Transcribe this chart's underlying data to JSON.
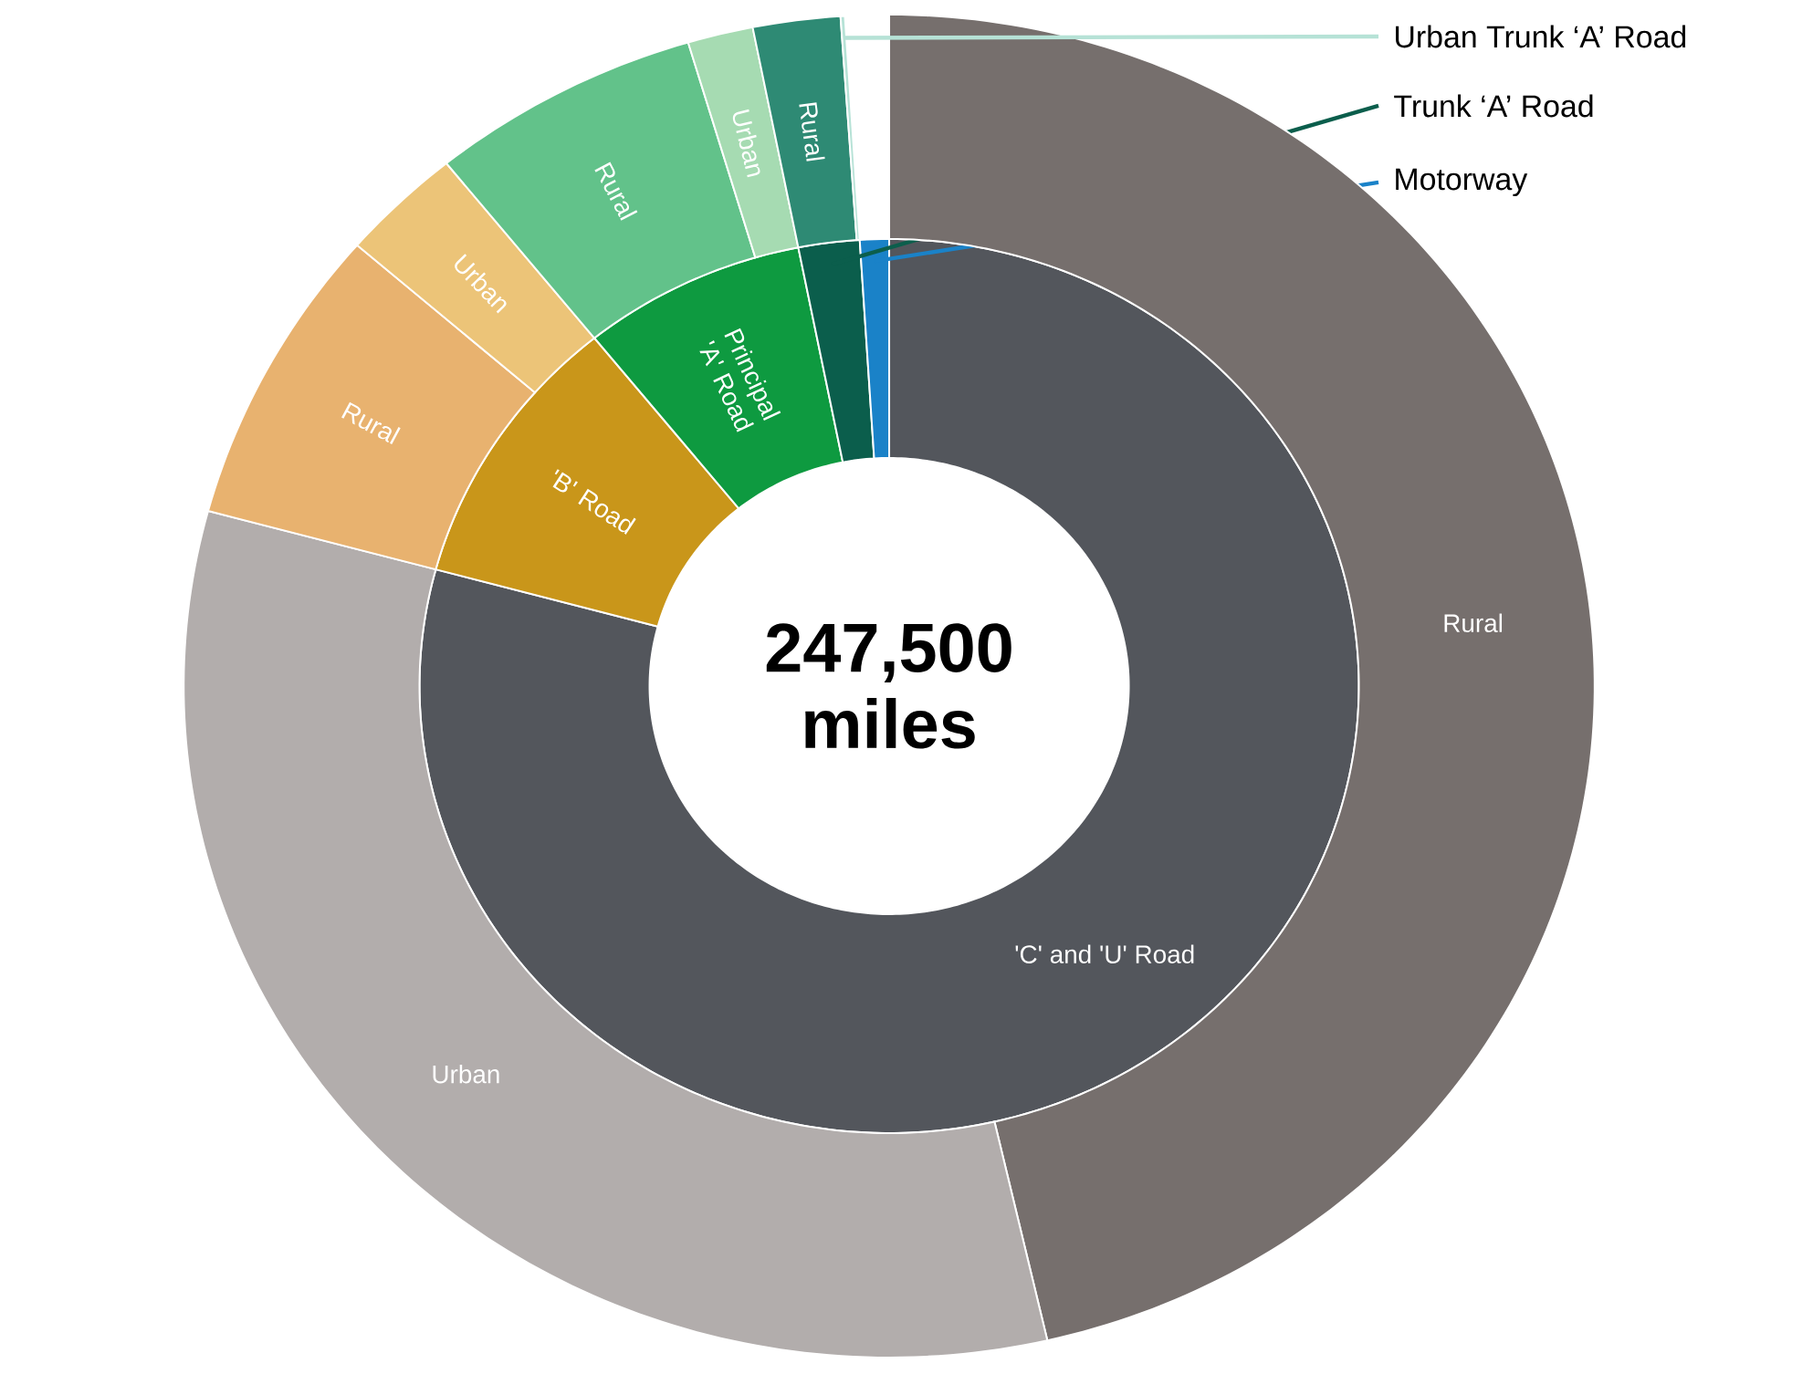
{
  "chart_data": [
    {
      "type": "donut",
      "title": "247,500 miles",
      "categories": [
        "'C' and 'U' Road",
        "'B' Road",
        "Principal 'A' Road",
        "Trunk ‘A’ Road",
        "Motorway"
      ],
      "values": [
        79.2,
        10.0,
        7.7,
        2.1,
        1.0
      ],
      "colors": [
        "#53565c",
        "#c9961a",
        "#0e9a40",
        "#0b5e4c",
        "#1a82c8"
      ]
    },
    {
      "type": "donut",
      "categories": [
        "Rural",
        "Urban",
        "Rural",
        "Urban",
        "Rural",
        "Urban",
        "Rural",
        "Urban Trunk ‘A’ Road"
      ],
      "values": [
        46.4,
        32.8,
        7.2,
        2.8,
        6.2,
        1.5,
        2.0,
        0.1
      ],
      "colors": [
        "#766f6d",
        "#b2adac",
        "#e8b26f",
        "#ecc478",
        "#62c28a",
        "#a6dbb2",
        "#2e8a74",
        "#b6e2d6"
      ]
    }
  ]
}
